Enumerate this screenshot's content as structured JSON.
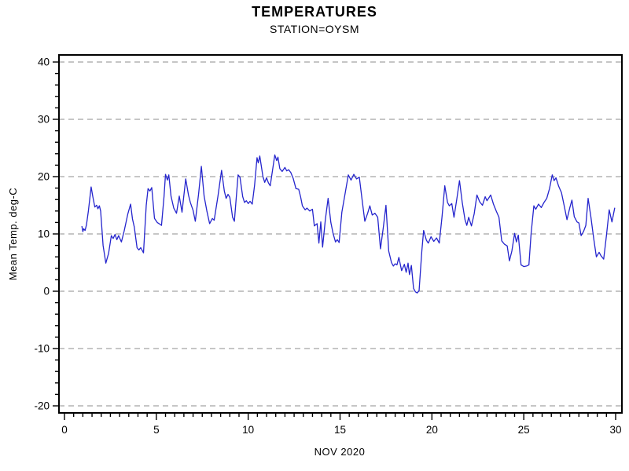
{
  "header": {
    "title": "TEMPERATURES",
    "subtitle": "STATION=OYSM"
  },
  "colors": {
    "line": "#2525cd",
    "grid": "#8c8c8c",
    "frame": "#000000",
    "background": "#ffffff"
  },
  "chart_data": {
    "type": "line",
    "title": "TEMPERATURES",
    "subtitle": "STATION=OYSM",
    "xlabel": "NOV 2020",
    "ylabel": "Mean Temp. deg-C",
    "xlim": [
      0,
      30
    ],
    "ylim": [
      -20,
      40
    ],
    "x_major_ticks": [
      0,
      5,
      10,
      15,
      20,
      25,
      30
    ],
    "x_minor_step": 0.5,
    "y_major_ticks": [
      -20,
      -10,
      0,
      10,
      20,
      30,
      40
    ],
    "y_minor_step": 2,
    "grid": "horizontal-dashed",
    "legend": "none",
    "line_color": "#2525cd",
    "point_format": [
      "day_of_nov_2020",
      "mean_temp_deg_C"
    ],
    "points": [
      [
        0.95,
        11.3
      ],
      [
        1.0,
        10.4
      ],
      [
        1.05,
        10.9
      ],
      [
        1.12,
        10.6
      ],
      [
        1.2,
        11.6
      ],
      [
        1.3,
        14.0
      ],
      [
        1.45,
        18.2
      ],
      [
        1.55,
        16.4
      ],
      [
        1.65,
        14.7
      ],
      [
        1.75,
        15.0
      ],
      [
        1.82,
        14.4
      ],
      [
        1.9,
        14.9
      ],
      [
        1.97,
        14.0
      ],
      [
        2.1,
        8.0
      ],
      [
        2.25,
        4.9
      ],
      [
        2.4,
        6.6
      ],
      [
        2.55,
        9.7
      ],
      [
        2.65,
        9.2
      ],
      [
        2.75,
        9.9
      ],
      [
        2.85,
        9.0
      ],
      [
        2.95,
        9.7
      ],
      [
        3.1,
        8.6
      ],
      [
        3.25,
        10.5
      ],
      [
        3.45,
        13.5
      ],
      [
        3.6,
        15.2
      ],
      [
        3.7,
        12.6
      ],
      [
        3.8,
        11.2
      ],
      [
        3.95,
        7.6
      ],
      [
        4.05,
        7.2
      ],
      [
        4.15,
        7.6
      ],
      [
        4.3,
        6.7
      ],
      [
        4.45,
        15.0
      ],
      [
        4.55,
        17.9
      ],
      [
        4.65,
        17.5
      ],
      [
        4.75,
        18.1
      ],
      [
        4.9,
        12.7
      ],
      [
        5.05,
        12.0
      ],
      [
        5.15,
        11.8
      ],
      [
        5.28,
        11.5
      ],
      [
        5.42,
        16.5
      ],
      [
        5.5,
        20.4
      ],
      [
        5.6,
        19.4
      ],
      [
        5.68,
        20.3
      ],
      [
        5.8,
        16.6
      ],
      [
        5.95,
        14.5
      ],
      [
        6.1,
        13.6
      ],
      [
        6.25,
        16.6
      ],
      [
        6.4,
        13.8
      ],
      [
        6.6,
        19.6
      ],
      [
        6.75,
        16.8
      ],
      [
        6.85,
        15.5
      ],
      [
        7.0,
        14.1
      ],
      [
        7.12,
        12.2
      ],
      [
        7.3,
        17.0
      ],
      [
        7.45,
        21.8
      ],
      [
        7.6,
        16.6
      ],
      [
        7.75,
        14.0
      ],
      [
        7.9,
        11.8
      ],
      [
        8.05,
        12.7
      ],
      [
        8.15,
        12.4
      ],
      [
        8.35,
        16.5
      ],
      [
        8.55,
        21.1
      ],
      [
        8.7,
        17.5
      ],
      [
        8.8,
        16.2
      ],
      [
        8.9,
        16.9
      ],
      [
        9.0,
        16.4
      ],
      [
        9.15,
        12.9
      ],
      [
        9.25,
        12.2
      ],
      [
        9.45,
        20.3
      ],
      [
        9.55,
        19.9
      ],
      [
        9.7,
        16.5
      ],
      [
        9.8,
        15.5
      ],
      [
        9.9,
        15.8
      ],
      [
        10.0,
        15.3
      ],
      [
        10.1,
        15.7
      ],
      [
        10.22,
        15.2
      ],
      [
        10.35,
        18.5
      ],
      [
        10.48,
        23.3
      ],
      [
        10.55,
        22.4
      ],
      [
        10.63,
        23.6
      ],
      [
        10.8,
        20.0
      ],
      [
        10.9,
        19.0
      ],
      [
        11.0,
        19.8
      ],
      [
        11.1,
        18.9
      ],
      [
        11.2,
        18.4
      ],
      [
        11.45,
        23.8
      ],
      [
        11.55,
        22.8
      ],
      [
        11.62,
        23.4
      ],
      [
        11.72,
        21.4
      ],
      [
        11.85,
        20.9
      ],
      [
        12.0,
        21.6
      ],
      [
        12.1,
        21.0
      ],
      [
        12.2,
        21.2
      ],
      [
        12.32,
        20.7
      ],
      [
        12.45,
        19.7
      ],
      [
        12.6,
        17.9
      ],
      [
        12.75,
        17.8
      ],
      [
        12.85,
        16.5
      ],
      [
        12.95,
        14.9
      ],
      [
        13.1,
        14.2
      ],
      [
        13.2,
        14.5
      ],
      [
        13.35,
        14.0
      ],
      [
        13.5,
        14.3
      ],
      [
        13.6,
        11.4
      ],
      [
        13.75,
        11.8
      ],
      [
        13.85,
        8.4
      ],
      [
        13.95,
        12.1
      ],
      [
        14.05,
        7.7
      ],
      [
        14.2,
        12.5
      ],
      [
        14.35,
        16.2
      ],
      [
        14.5,
        12.0
      ],
      [
        14.62,
        10.1
      ],
      [
        14.75,
        8.6
      ],
      [
        14.85,
        9.0
      ],
      [
        14.95,
        8.5
      ],
      [
        15.1,
        13.8
      ],
      [
        15.3,
        17.5
      ],
      [
        15.45,
        20.3
      ],
      [
        15.6,
        19.4
      ],
      [
        15.75,
        20.4
      ],
      [
        15.9,
        19.6
      ],
      [
        16.05,
        19.9
      ],
      [
        16.2,
        16.0
      ],
      [
        16.35,
        12.2
      ],
      [
        16.5,
        13.6
      ],
      [
        16.62,
        14.9
      ],
      [
        16.75,
        13.3
      ],
      [
        16.9,
        13.6
      ],
      [
        17.05,
        12.9
      ],
      [
        17.2,
        7.4
      ],
      [
        17.35,
        11.0
      ],
      [
        17.5,
        15.0
      ],
      [
        17.65,
        7.0
      ],
      [
        17.8,
        5.0
      ],
      [
        17.9,
        4.4
      ],
      [
        18.0,
        4.8
      ],
      [
        18.1,
        4.6
      ],
      [
        18.2,
        5.9
      ],
      [
        18.35,
        3.6
      ],
      [
        18.5,
        4.7
      ],
      [
        18.6,
        3.3
      ],
      [
        18.7,
        4.9
      ],
      [
        18.78,
        2.9
      ],
      [
        18.88,
        4.5
      ],
      [
        19.0,
        0.5
      ],
      [
        19.1,
        -0.1
      ],
      [
        19.2,
        -0.3
      ],
      [
        19.3,
        0.1
      ],
      [
        19.45,
        7.0
      ],
      [
        19.55,
        10.6
      ],
      [
        19.7,
        8.9
      ],
      [
        19.8,
        8.4
      ],
      [
        19.95,
        9.5
      ],
      [
        20.1,
        8.7
      ],
      [
        20.25,
        9.3
      ],
      [
        20.4,
        8.4
      ],
      [
        20.55,
        13.0
      ],
      [
        20.7,
        18.4
      ],
      [
        20.85,
        15.5
      ],
      [
        20.95,
        14.9
      ],
      [
        21.08,
        15.3
      ],
      [
        21.2,
        12.9
      ],
      [
        21.35,
        16.0
      ],
      [
        21.5,
        19.3
      ],
      [
        21.65,
        15.5
      ],
      [
        21.8,
        12.5
      ],
      [
        21.9,
        11.5
      ],
      [
        22.0,
        12.9
      ],
      [
        22.15,
        11.4
      ],
      [
        22.3,
        13.5
      ],
      [
        22.45,
        16.8
      ],
      [
        22.6,
        15.6
      ],
      [
        22.75,
        15.0
      ],
      [
        22.9,
        16.5
      ],
      [
        23.0,
        15.8
      ],
      [
        23.1,
        16.3
      ],
      [
        23.2,
        16.8
      ],
      [
        23.35,
        15.2
      ],
      [
        23.5,
        14.0
      ],
      [
        23.65,
        12.9
      ],
      [
        23.8,
        8.8
      ],
      [
        23.95,
        8.2
      ],
      [
        24.1,
        7.9
      ],
      [
        24.22,
        5.3
      ],
      [
        24.35,
        7.0
      ],
      [
        24.5,
        10.1
      ],
      [
        24.6,
        8.6
      ],
      [
        24.7,
        9.8
      ],
      [
        24.85,
        4.6
      ],
      [
        25.0,
        4.3
      ],
      [
        25.15,
        4.4
      ],
      [
        25.28,
        4.6
      ],
      [
        25.4,
        10.1
      ],
      [
        25.55,
        14.9
      ],
      [
        25.65,
        14.3
      ],
      [
        25.8,
        15.2
      ],
      [
        25.95,
        14.6
      ],
      [
        26.1,
        15.5
      ],
      [
        26.25,
        16.2
      ],
      [
        26.4,
        17.9
      ],
      [
        26.55,
        20.3
      ],
      [
        26.65,
        19.3
      ],
      [
        26.75,
        19.8
      ],
      [
        26.9,
        18.3
      ],
      [
        27.05,
        17.2
      ],
      [
        27.2,
        14.9
      ],
      [
        27.35,
        12.5
      ],
      [
        27.5,
        14.5
      ],
      [
        27.62,
        15.9
      ],
      [
        27.75,
        13.0
      ],
      [
        27.9,
        12.1
      ],
      [
        28.0,
        11.9
      ],
      [
        28.12,
        9.7
      ],
      [
        28.25,
        10.4
      ],
      [
        28.38,
        11.5
      ],
      [
        28.5,
        16.2
      ],
      [
        28.65,
        13.0
      ],
      [
        28.8,
        9.3
      ],
      [
        28.95,
        6.0
      ],
      [
        29.1,
        6.8
      ],
      [
        29.2,
        6.2
      ],
      [
        29.35,
        5.6
      ],
      [
        29.5,
        9.7
      ],
      [
        29.65,
        14.2
      ],
      [
        29.8,
        12.1
      ],
      [
        29.95,
        14.5
      ]
    ]
  }
}
